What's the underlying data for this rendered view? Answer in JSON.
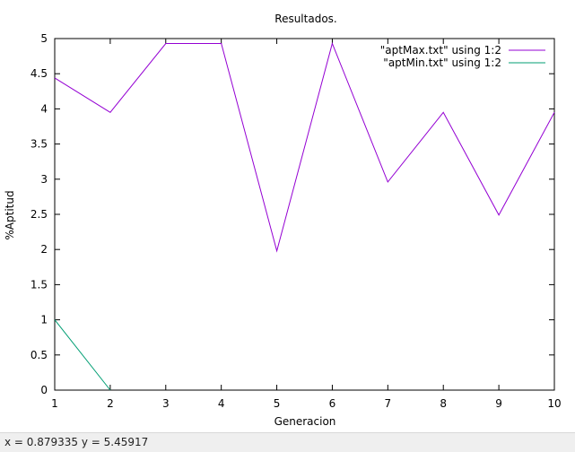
{
  "chart_data": {
    "type": "line",
    "title": "Resultados.",
    "xlabel": "Generacion",
    "ylabel": "%Aptitud",
    "xlim": [
      1,
      10
    ],
    "ylim": [
      0,
      5
    ],
    "x_ticks": [
      "1",
      "2",
      "3",
      "4",
      "5",
      "6",
      "7",
      "8",
      "9",
      "10"
    ],
    "y_ticks": [
      "0",
      "0.5",
      "1",
      "1.5",
      "2",
      "2.5",
      "3",
      "3.5",
      "4",
      "4.5",
      "5"
    ],
    "grid": false,
    "legend_position": "top-right",
    "series": [
      {
        "name": "\"aptMax.txt\" using 1:2",
        "color": "#9400d3",
        "x": [
          1,
          2,
          3,
          4,
          5,
          6,
          7,
          8,
          9,
          10
        ],
        "y": [
          4.44,
          3.95,
          4.93,
          4.93,
          1.98,
          4.93,
          2.96,
          3.95,
          2.49,
          3.95
        ]
      },
      {
        "name": "\"aptMin.txt\" using 1:2",
        "color": "#009e73",
        "x": [
          1,
          2
        ],
        "y": [
          1.0,
          0.0
        ]
      }
    ]
  },
  "status_bar": {
    "text": "x = 0.879335 y = 5.45917"
  }
}
